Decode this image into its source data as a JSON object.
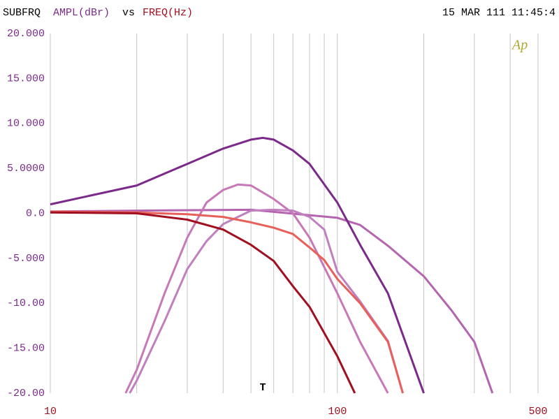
{
  "chart_data": {
    "type": "line",
    "title": "SUBFRQ",
    "ylabel": "AMPL(dBr)",
    "joiner": "vs",
    "xlabel": "FREQ(Hz)",
    "timestamp": "15 MAR 111 11:45:4",
    "logo": "Ap",
    "cursor": {
      "label": "T",
      "x": 55
    },
    "xscale": "log",
    "grid": "x",
    "xlim": [
      10,
      500
    ],
    "ylim": [
      -20,
      20
    ],
    "xticks": [
      10,
      100,
      500
    ],
    "xminor": [
      20,
      30,
      40,
      50,
      60,
      70,
      80,
      90,
      200,
      300,
      400
    ],
    "yticks": [
      {
        "value": 20,
        "label": "20.000"
      },
      {
        "value": 15,
        "label": "15.000"
      },
      {
        "value": 10,
        "label": "10.000"
      },
      {
        "value": 5,
        "label": "5.0000"
      },
      {
        "value": 0,
        "label": "0.0"
      },
      {
        "value": -5,
        "label": "-5.000"
      },
      {
        "value": -10,
        "label": "-10.00"
      },
      {
        "value": -15,
        "label": "-15.00"
      },
      {
        "value": -20,
        "label": "-20.00"
      }
    ],
    "series": [
      {
        "color": "#b565b0",
        "x": [
          10,
          20,
          50,
          100,
          120,
          150,
          200,
          250,
          300,
          347
        ],
        "values": [
          0.2,
          0.3,
          0.4,
          -0.5,
          -1.3,
          -3.6,
          -7,
          -10.8,
          -14.3,
          -20
        ]
      },
      {
        "color": "#c878b8",
        "x": [
          18.3,
          20,
          25,
          30,
          35,
          40,
          45,
          50,
          60,
          70,
          80,
          100,
          120,
          150
        ],
        "values": [
          -20,
          -17.4,
          -8.9,
          -2.7,
          1.2,
          2.6,
          3.2,
          3.1,
          1.6,
          0,
          -2.7,
          -8.9,
          -14.3,
          -20
        ]
      },
      {
        "color": "#c080c0",
        "x": [
          18.9,
          20,
          25,
          30,
          35,
          40,
          50,
          60,
          70,
          80,
          90,
          100,
          120,
          150,
          169
        ],
        "values": [
          -20,
          -18.6,
          -12,
          -6.2,
          -3.1,
          -1.2,
          0.3,
          0.4,
          0.3,
          -0.4,
          -1.8,
          -6.5,
          -9.8,
          -14.2,
          -20
        ]
      },
      {
        "color": "#e8605a",
        "x": [
          10,
          20,
          30,
          40,
          50,
          60,
          70,
          80,
          90,
          100,
          120,
          150,
          169
        ],
        "values": [
          0.2,
          0.1,
          -0.1,
          -0.4,
          -1.0,
          -1.6,
          -2.3,
          -3.8,
          -5.2,
          -7.3,
          -10,
          -14.3,
          -20
        ]
      },
      {
        "color": "#a01020",
        "x": [
          10,
          20,
          30,
          40,
          50,
          60,
          70,
          80,
          100,
          115
        ],
        "values": [
          0.1,
          0,
          -0.7,
          -1.8,
          -3.5,
          -5.3,
          -8.1,
          -10.4,
          -15.9,
          -20
        ]
      },
      {
        "color": "#7b2a8a",
        "x": [
          10,
          20,
          30,
          40,
          50,
          55,
          60,
          70,
          80,
          100,
          120,
          150,
          200
        ],
        "values": [
          1.0,
          3.1,
          5.5,
          7.2,
          8.2,
          8.4,
          8.2,
          7.0,
          5.5,
          1.2,
          -3.5,
          -8.9,
          -20
        ]
      }
    ]
  }
}
